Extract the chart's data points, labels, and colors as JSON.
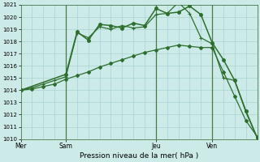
{
  "xlabel": "Pression niveau de la mer( hPa )",
  "bg_color": "#cceae8",
  "grid_color": "#aad4d0",
  "line_color": "#2d6e2d",
  "ylim": [
    1010,
    1021
  ],
  "yticks": [
    1010,
    1011,
    1012,
    1013,
    1014,
    1015,
    1016,
    1017,
    1018,
    1019,
    1020,
    1021
  ],
  "xtick_labels": [
    "Mer",
    "Sam",
    "Jeu",
    "Ven"
  ],
  "xtick_positions": [
    0,
    4,
    12,
    17
  ],
  "xlim": [
    0,
    21
  ],
  "vline_positions": [
    4,
    12,
    17
  ],
  "line_spike_x": [
    0,
    1,
    2,
    3,
    4,
    5,
    6,
    7,
    8,
    9,
    10,
    11,
    12,
    13,
    14,
    15,
    16,
    17,
    18,
    19,
    20,
    21
  ],
  "line_spike_y": [
    1014.0,
    1014.2,
    1014.5,
    1014.8,
    1015.1,
    1018.7,
    1018.3,
    1019.2,
    1019.0,
    1019.3,
    1019.1,
    1019.2,
    1020.2,
    1020.3,
    1021.2,
    1020.3,
    1018.3,
    1017.8,
    1015.0,
    1014.8,
    1012.2,
    1010.1
  ],
  "line_diag_x": [
    0,
    1,
    2,
    3,
    4,
    5,
    6,
    7,
    8,
    9,
    10,
    11,
    12,
    13,
    14,
    15,
    16,
    17,
    18,
    19,
    20,
    21
  ],
  "line_diag_y": [
    1014.0,
    1014.1,
    1014.3,
    1014.5,
    1014.9,
    1015.2,
    1015.5,
    1015.9,
    1016.2,
    1016.5,
    1016.8,
    1017.1,
    1017.3,
    1017.5,
    1017.7,
    1017.6,
    1017.5,
    1017.5,
    1015.5,
    1013.5,
    1011.5,
    1010.2
  ],
  "line_top_x": [
    0,
    4,
    5,
    6,
    7,
    8,
    9,
    10,
    11,
    12,
    13,
    14,
    15,
    16,
    17,
    18,
    19,
    20,
    21
  ],
  "line_top_y": [
    1014.0,
    1015.3,
    1018.8,
    1018.1,
    1019.4,
    1019.3,
    1019.1,
    1019.5,
    1019.3,
    1020.7,
    1020.3,
    1020.4,
    1020.9,
    1020.2,
    1017.9,
    1016.5,
    1014.8,
    1012.3,
    1010.1
  ]
}
